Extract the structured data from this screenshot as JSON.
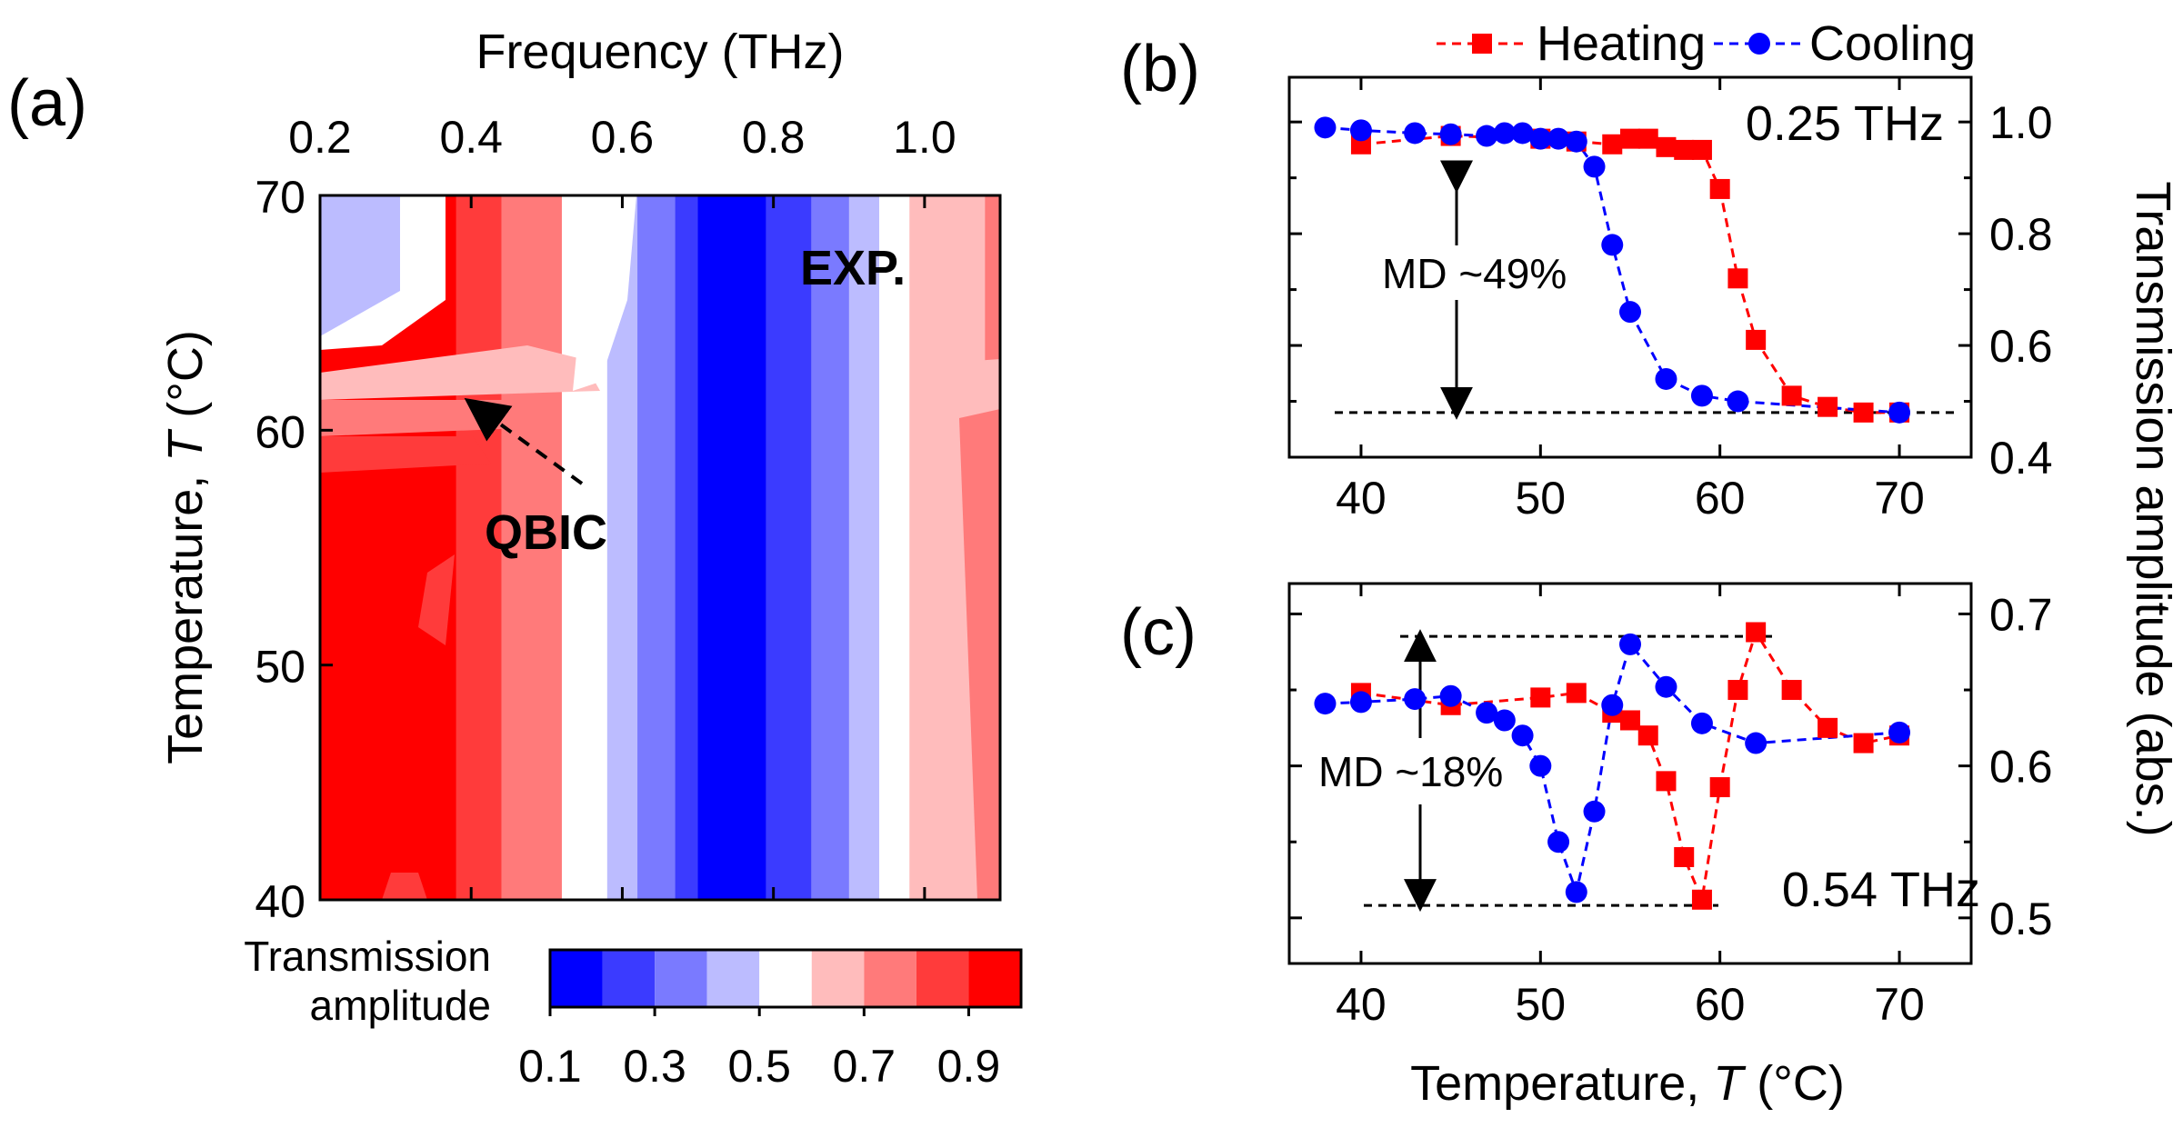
{
  "figure": {
    "panel_labels": [
      "(a)",
      "(b)",
      "(c)"
    ]
  },
  "chart_data": [
    {
      "panel": "(a)",
      "type": "heatmap",
      "title": "",
      "xlabel": "Frequency (THz)",
      "ylabel_prefix": "Temperature, ",
      "ylabel_var": "T",
      "ylabel_suffix": " (°C)",
      "xlim": [
        0.2,
        1.1
      ],
      "ylim": [
        40,
        70
      ],
      "xticks": [
        "0.2",
        "0.4",
        "0.6",
        "0.8",
        "1.0"
      ],
      "xtick_values": [
        0.2,
        0.4,
        0.6,
        0.8,
        1.0
      ],
      "yticks": [
        "40",
        "50",
        "60",
        "70"
      ],
      "ytick_values": [
        40,
        50,
        60,
        70
      ],
      "colorbar": {
        "label_line1": "Transmission",
        "label_line2": "amplitude",
        "tick_labels": [
          "0.1",
          "0.3",
          "0.5",
          "0.7",
          "0.9"
        ],
        "levels": [
          0.1,
          0.2,
          0.3,
          0.4,
          0.5,
          0.6,
          0.7,
          0.8,
          0.9,
          1.0
        ],
        "colors": [
          "#0000ff",
          "#3b3bff",
          "#7a7aff",
          "#bcbcff",
          "#ffffff",
          "#ffbcbc",
          "#ff7a7a",
          "#ff3b3b",
          "#ff0000"
        ]
      },
      "bands": [
        {
          "f_start": 0.2,
          "f_end": 0.38,
          "level": "#ff0000"
        },
        {
          "f_start": 0.38,
          "f_end": 0.44,
          "level": "#ff3b3b"
        },
        {
          "f_start": 0.44,
          "f_end": 0.52,
          "level": "#ff7a7a"
        },
        {
          "f_start": 0.52,
          "f_end": 0.58,
          "level": "#ffffff"
        },
        {
          "f_start": 0.58,
          "f_end": 0.62,
          "level": "#bcbcff"
        },
        {
          "f_start": 0.62,
          "f_end": 0.67,
          "level": "#7a7aff"
        },
        {
          "f_start": 0.67,
          "f_end": 0.7,
          "level": "#3b3bff"
        },
        {
          "f_start": 0.7,
          "f_end": 0.79,
          "level": "#0000ff"
        },
        {
          "f_start": 0.79,
          "f_end": 0.85,
          "level": "#3b3bff"
        },
        {
          "f_start": 0.85,
          "f_end": 0.9,
          "level": "#7a7aff"
        },
        {
          "f_start": 0.9,
          "f_end": 0.94,
          "level": "#bcbcff"
        },
        {
          "f_start": 0.94,
          "f_end": 0.98,
          "level": "#ffffff"
        },
        {
          "f_start": 0.98,
          "f_end": 1.08,
          "level": "#ffbcbc"
        },
        {
          "f_start": 1.08,
          "f_end": 1.1,
          "level": "#ff7a7a"
        }
      ],
      "annotations": {
        "exp": "EXP.",
        "qbic": "QBIC"
      }
    },
    {
      "panel": "(b)",
      "type": "line",
      "frequency_label": "0.25 THz",
      "xlim": [
        36,
        74
      ],
      "ylim": [
        0.4,
        1.08
      ],
      "xticks": [
        "40",
        "50",
        "60",
        "70"
      ],
      "xtick_values": [
        40,
        50,
        60,
        70
      ],
      "yticks": [
        "0.4",
        "0.6",
        "0.8",
        "1.0"
      ],
      "ytick_values": [
        0.4,
        0.6,
        0.8,
        1.0
      ],
      "md_label": "MD ~49%",
      "md_span": [
        0.98,
        0.48
      ],
      "series": [
        {
          "name": "Heating",
          "color": "#ff0000",
          "marker": "square",
          "x": [
            40,
            45,
            50,
            52,
            54,
            55,
            56,
            57,
            58,
            59,
            60,
            61,
            62,
            64,
            66,
            68,
            70
          ],
          "values": [
            0.96,
            0.975,
            0.97,
            0.965,
            0.96,
            0.97,
            0.97,
            0.955,
            0.95,
            0.95,
            0.88,
            0.72,
            0.61,
            0.51,
            0.49,
            0.48,
            0.48
          ]
        },
        {
          "name": "Cooling",
          "color": "#0000ff",
          "marker": "circle",
          "x": [
            38,
            40,
            43,
            45,
            47,
            48,
            49,
            50,
            51,
            52,
            53,
            54,
            55,
            57,
            59,
            61,
            70
          ],
          "values": [
            0.99,
            0.985,
            0.98,
            0.978,
            0.975,
            0.98,
            0.98,
            0.97,
            0.97,
            0.965,
            0.92,
            0.78,
            0.66,
            0.54,
            0.51,
            0.5,
            0.48
          ]
        }
      ]
    },
    {
      "panel": "(c)",
      "type": "line",
      "frequency_label": "0.54 THz",
      "xlabel_prefix": "Temperature, ",
      "xlabel_var": "T",
      "xlabel_suffix": " (°C)",
      "xlim": [
        36,
        74
      ],
      "ylim": [
        0.47,
        0.72
      ],
      "xticks": [
        "40",
        "50",
        "60",
        "70"
      ],
      "xtick_values": [
        40,
        50,
        60,
        70
      ],
      "yticks": [
        "0.5",
        "0.6",
        "0.7"
      ],
      "ytick_values": [
        0.5,
        0.6,
        0.7
      ],
      "md_label": "MD ~18%",
      "md_span": [
        0.69,
        0.51
      ],
      "series": [
        {
          "name": "Heating",
          "color": "#ff0000",
          "marker": "square",
          "x": [
            40,
            45,
            50,
            52,
            54,
            55,
            56,
            57,
            58,
            59,
            60,
            61,
            62,
            64,
            66,
            68,
            70
          ],
          "values": [
            0.648,
            0.64,
            0.645,
            0.648,
            0.635,
            0.63,
            0.62,
            0.59,
            0.54,
            0.512,
            0.586,
            0.65,
            0.688,
            0.65,
            0.625,
            0.615,
            0.62
          ]
        },
        {
          "name": "Cooling",
          "color": "#0000ff",
          "marker": "circle",
          "x": [
            38,
            40,
            43,
            45,
            47,
            48,
            49,
            50,
            51,
            52,
            53,
            54,
            55,
            57,
            59,
            62,
            70
          ],
          "values": [
            0.641,
            0.642,
            0.644,
            0.646,
            0.635,
            0.63,
            0.62,
            0.6,
            0.55,
            0.517,
            0.57,
            0.64,
            0.68,
            0.652,
            0.628,
            0.615,
            0.622
          ]
        }
      ],
      "ylabel": "Transmission amplitude (abs.)"
    }
  ],
  "legend": {
    "items": [
      {
        "label": "Heating",
        "color": "#ff0000",
        "marker": "square"
      },
      {
        "label": "Cooling",
        "color": "#0000ff",
        "marker": "circle"
      }
    ]
  }
}
